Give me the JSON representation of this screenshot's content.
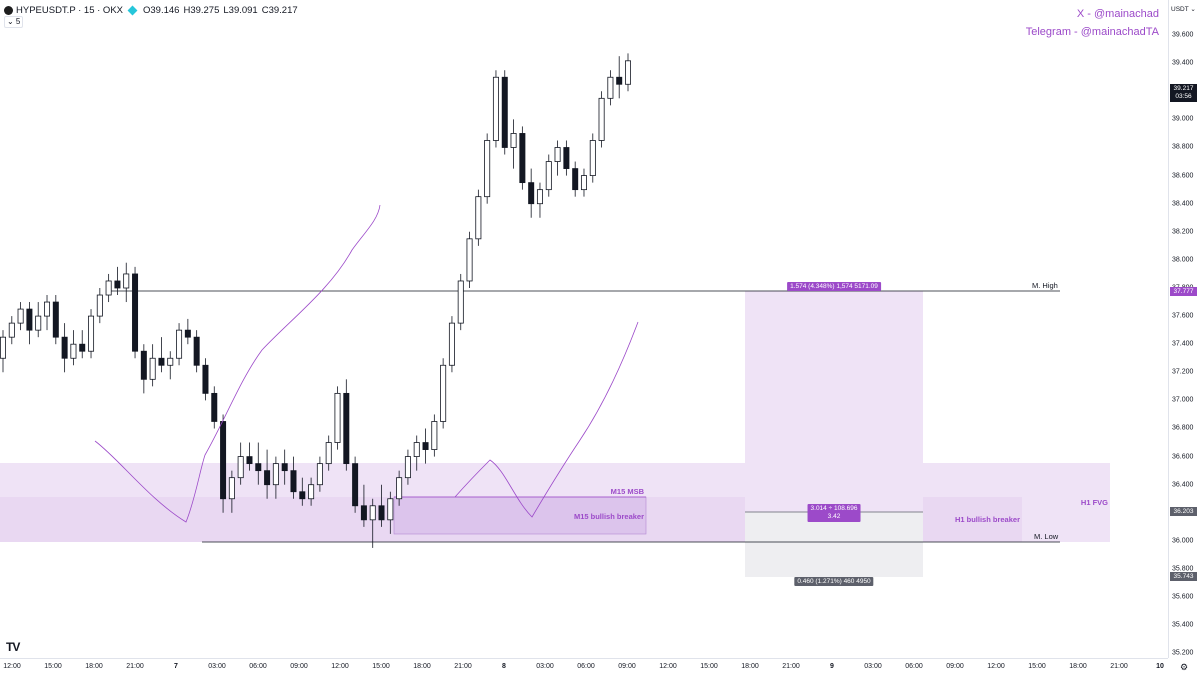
{
  "header": {
    "symbol": "HYPEUSDT.P · 15 · OKX",
    "open": "O39.146",
    "high": "H39.275",
    "low": "L39.091",
    "close": "C39.217",
    "collapse_label": "⌄ 5"
  },
  "social": {
    "x": "X - @mainachad",
    "telegram": "Telegram - @mainachadTA"
  },
  "price_scale": {
    "currency": "USDT ⌄",
    "labels": [
      "39.600",
      "39.400",
      "39.200",
      "39.000",
      "38.800",
      "38.600",
      "38.400",
      "38.200",
      "38.000",
      "37.800",
      "37.600",
      "37.400",
      "37.200",
      "37.000",
      "36.800",
      "36.600",
      "36.400",
      "36.200",
      "36.000",
      "35.800",
      "35.600",
      "35.400",
      "35.200"
    ],
    "current_price": "39.217",
    "countdown": "03:56",
    "high_tag": "37.777",
    "entry_tag": "36.203",
    "stop_tag": "35.743"
  },
  "time_scale": {
    "labels": [
      {
        "t": "12:00"
      },
      {
        "t": "15:00"
      },
      {
        "t": "18:00"
      },
      {
        "t": "21:00"
      },
      {
        "t": "7",
        "bold": true
      },
      {
        "t": "03:00"
      },
      {
        "t": "06:00"
      },
      {
        "t": "09:00"
      },
      {
        "t": "12:00"
      },
      {
        "t": "15:00"
      },
      {
        "t": "18:00"
      },
      {
        "t": "21:00"
      },
      {
        "t": "8",
        "bold": true
      },
      {
        "t": "03:00"
      },
      {
        "t": "06:00"
      },
      {
        "t": "09:00"
      },
      {
        "t": "12:00"
      },
      {
        "t": "15:00"
      },
      {
        "t": "18:00"
      },
      {
        "t": "21:00"
      },
      {
        "t": "9",
        "bold": true
      },
      {
        "t": "03:00"
      },
      {
        "t": "06:00"
      },
      {
        "t": "09:00"
      },
      {
        "t": "12:00"
      },
      {
        "t": "15:00"
      },
      {
        "t": "18:00"
      },
      {
        "t": "21:00"
      },
      {
        "t": "10",
        "bold": true
      }
    ]
  },
  "annotations": {
    "m_high": "M. High",
    "m_low": "M. Low",
    "m15_msb": "M15 MSB",
    "m15_breaker": "M15 bullish breaker",
    "h1_breaker": "H1 bullish breaker",
    "h1_fvg": "H1 FVG"
  },
  "measure": {
    "target": "1.574 (4.348%) 1,574 5171.09",
    "ratio_line1": "3.014 ÷ 108.696",
    "ratio_line2": "3.42",
    "stop": "0.460 (1.271%) 460 4950"
  },
  "colors": {
    "accent": "#9c4ac9",
    "candle": "#131722",
    "zone": "#e9d8f2",
    "target_zone": "#efe3f6",
    "stop_zone": "#eeeef1"
  },
  "chart_data": {
    "type": "candlestick",
    "symbol": "HYPEUSDT.P",
    "interval": "15",
    "ylim": [
      35.2,
      39.6
    ],
    "levels": {
      "m_high": 37.777,
      "m_low": 36.0,
      "entry": 36.203,
      "stop": 35.743
    },
    "candles": [
      [
        37.1,
        37.3,
        37.0,
        37.25
      ],
      [
        37.25,
        37.4,
        37.2,
        37.35
      ],
      [
        37.35,
        37.5,
        37.3,
        37.45
      ],
      [
        37.45,
        37.5,
        37.2,
        37.3
      ],
      [
        37.3,
        37.5,
        37.25,
        37.4
      ],
      [
        37.4,
        37.55,
        37.3,
        37.5
      ],
      [
        37.5,
        37.55,
        37.2,
        37.25
      ],
      [
        37.25,
        37.35,
        37.0,
        37.1
      ],
      [
        37.1,
        37.3,
        37.05,
        37.2
      ],
      [
        37.2,
        37.3,
        37.1,
        37.15
      ],
      [
        37.15,
        37.45,
        37.1,
        37.4
      ],
      [
        37.4,
        37.6,
        37.35,
        37.55
      ],
      [
        37.55,
        37.7,
        37.5,
        37.65
      ],
      [
        37.65,
        37.75,
        37.55,
        37.6
      ],
      [
        37.6,
        37.78,
        37.5,
        37.7
      ],
      [
        37.7,
        37.75,
        37.1,
        37.15
      ],
      [
        37.15,
        37.2,
        36.85,
        36.95
      ],
      [
        36.95,
        37.2,
        36.9,
        37.1
      ],
      [
        37.1,
        37.25,
        37.0,
        37.05
      ],
      [
        37.05,
        37.15,
        36.95,
        37.1
      ],
      [
        37.1,
        37.35,
        37.05,
        37.3
      ],
      [
        37.3,
        37.38,
        37.2,
        37.25
      ],
      [
        37.25,
        37.3,
        37.0,
        37.05
      ],
      [
        37.05,
        37.1,
        36.8,
        36.85
      ],
      [
        36.85,
        36.9,
        36.6,
        36.65
      ],
      [
        36.65,
        36.7,
        36.0,
        36.1
      ],
      [
        36.1,
        36.3,
        36.0,
        36.25
      ],
      [
        36.25,
        36.5,
        36.2,
        36.4
      ],
      [
        36.4,
        36.5,
        36.3,
        36.35
      ],
      [
        36.35,
        36.5,
        36.2,
        36.3
      ],
      [
        36.3,
        36.45,
        36.1,
        36.2
      ],
      [
        36.2,
        36.4,
        36.1,
        36.35
      ],
      [
        36.35,
        36.45,
        36.2,
        36.3
      ],
      [
        36.3,
        36.4,
        36.1,
        36.15
      ],
      [
        36.15,
        36.25,
        36.05,
        36.1
      ],
      [
        36.1,
        36.25,
        36.05,
        36.2
      ],
      [
        36.2,
        36.4,
        36.15,
        36.35
      ],
      [
        36.35,
        36.55,
        36.3,
        36.5
      ],
      [
        36.5,
        36.9,
        36.45,
        36.85
      ],
      [
        36.85,
        36.95,
        36.3,
        36.35
      ],
      [
        36.35,
        36.4,
        36.0,
        36.05
      ],
      [
        36.05,
        36.2,
        35.9,
        35.95
      ],
      [
        35.95,
        36.1,
        35.75,
        36.05
      ],
      [
        36.05,
        36.2,
        35.9,
        35.95
      ],
      [
        35.95,
        36.15,
        35.85,
        36.1
      ],
      [
        36.1,
        36.3,
        36.05,
        36.25
      ],
      [
        36.25,
        36.45,
        36.2,
        36.4
      ],
      [
        36.4,
        36.55,
        36.3,
        36.5
      ],
      [
        36.5,
        36.6,
        36.35,
        36.45
      ],
      [
        36.45,
        36.7,
        36.4,
        36.65
      ],
      [
        36.65,
        37.1,
        36.6,
        37.05
      ],
      [
        37.05,
        37.4,
        37.0,
        37.35
      ],
      [
        37.35,
        37.7,
        37.3,
        37.65
      ],
      [
        37.65,
        38.0,
        37.6,
        37.95
      ],
      [
        37.95,
        38.3,
        37.9,
        38.25
      ],
      [
        38.25,
        38.7,
        38.2,
        38.65
      ],
      [
        38.65,
        39.15,
        38.6,
        39.1
      ],
      [
        39.1,
        39.15,
        38.55,
        38.6
      ],
      [
        38.6,
        38.8,
        38.45,
        38.7
      ],
      [
        38.7,
        38.75,
        38.3,
        38.35
      ],
      [
        38.35,
        38.45,
        38.1,
        38.2
      ],
      [
        38.2,
        38.35,
        38.1,
        38.3
      ],
      [
        38.3,
        38.55,
        38.25,
        38.5
      ],
      [
        38.5,
        38.65,
        38.4,
        38.6
      ],
      [
        38.6,
        38.65,
        38.4,
        38.45
      ],
      [
        38.45,
        38.5,
        38.25,
        38.3
      ],
      [
        38.3,
        38.45,
        38.25,
        38.4
      ],
      [
        38.4,
        38.7,
        38.35,
        38.65
      ],
      [
        38.65,
        39.0,
        38.6,
        38.95
      ],
      [
        38.95,
        39.15,
        38.9,
        39.1
      ],
      [
        39.1,
        39.25,
        38.95,
        39.05
      ],
      [
        39.05,
        39.27,
        39.0,
        39.217
      ]
    ]
  }
}
